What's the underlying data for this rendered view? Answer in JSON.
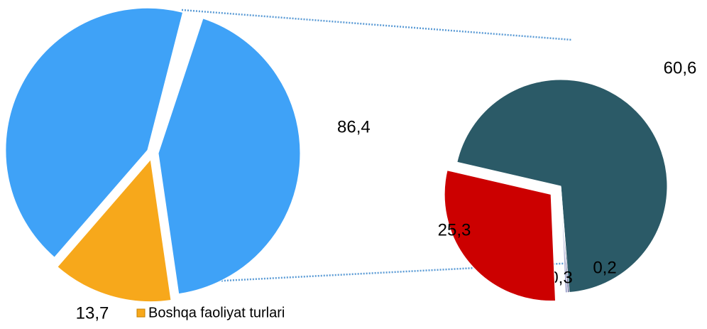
{
  "chart_data": {
    "type": "pie-of-pie",
    "pies": [
      {
        "categories": [
          null,
          "Boshqa faoliyat turlari"
        ],
        "values": [
          86.4,
          13.7
        ],
        "value_labels": [
          "86,4",
          "13,7"
        ],
        "colors": [
          "#3fa2f7",
          "#f7a81b"
        ]
      },
      {
        "values": [
          60.6,
          0.2,
          0.3,
          25.3
        ],
        "value_labels": [
          "60,6",
          "0,2",
          "0,3",
          "25,3"
        ],
        "colors": [
          "#2b5a67",
          "#3d3d7a",
          "#a7acd0",
          "#cc0000"
        ]
      }
    ]
  }
}
